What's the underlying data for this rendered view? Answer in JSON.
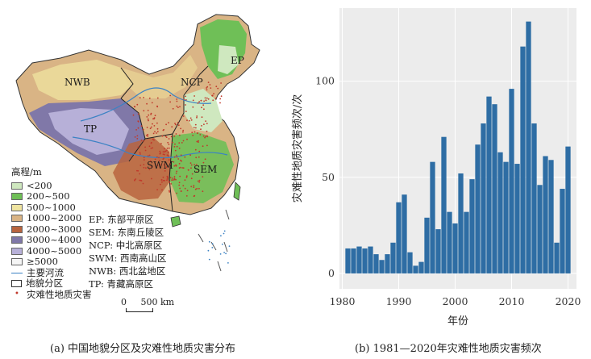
{
  "map_panel": {
    "legend_title": "高程/m",
    "elevation_legend": [
      {
        "label": "<200",
        "color": "#cfe8bf"
      },
      {
        "label": "200~500",
        "color": "#6fbf57"
      },
      {
        "label": "500~1000",
        "color": "#efe4a0"
      },
      {
        "label": "1000~2000",
        "color": "#d9b485"
      },
      {
        "label": "2000~3000",
        "color": "#b8643e"
      },
      {
        "label": "3000~4000",
        "color": "#8078a8"
      },
      {
        "label": "4000~5000",
        "color": "#b7b0d8"
      },
      {
        "label": "≥5000",
        "color": "#f5f5f5"
      }
    ],
    "river_label": "主要河流",
    "region_label": "地貌分区",
    "hazard_label": "灾难性地质灾害",
    "region_legend": [
      "EP: 东部平原区",
      "SEM: 东南丘陵区",
      "NCP: 中北高原区",
      "SWM: 西南高山区",
      "NWB: 西北盆地区",
      "TP: 青藏高原区"
    ],
    "map_labels": {
      "ep": "EP",
      "ncp": "NCP",
      "nwb": "NWB",
      "tp": "TP",
      "swm": "SWM",
      "sem": "SEM"
    },
    "scale_zero": "0",
    "scale_text": "500 km",
    "caption": "(a) 中国地貌分区及灾难性地质灾害分布"
  },
  "chart_panel": {
    "caption": "(b) 1981—2020年灾难性地质灾害频次"
  },
  "chart_data": {
    "type": "bar",
    "title": "",
    "xlabel": "年份",
    "ylabel": "灾难性地质灾害频次/次",
    "x": [
      1981,
      1982,
      1983,
      1984,
      1985,
      1986,
      1987,
      1988,
      1989,
      1990,
      1991,
      1992,
      1993,
      1994,
      1995,
      1996,
      1997,
      1998,
      1999,
      2000,
      2001,
      2002,
      2003,
      2004,
      2005,
      2006,
      2007,
      2008,
      2009,
      2010,
      2011,
      2012,
      2013,
      2014,
      2015,
      2016,
      2017,
      2018,
      2019,
      2020
    ],
    "values": [
      13,
      13,
      14,
      13,
      14,
      10,
      7,
      10,
      16,
      37,
      41,
      11,
      4,
      6,
      29,
      58,
      23,
      71,
      32,
      26,
      52,
      32,
      49,
      67,
      78,
      92,
      88,
      63,
      58,
      96,
      57,
      118,
      131,
      78,
      46,
      61,
      59,
      16,
      44,
      66
    ],
    "xticks": [
      1980,
      1990,
      2000,
      2010,
      2020
    ],
    "yticks": [
      0,
      50,
      100
    ],
    "xlim": [
      1979.5,
      2021.5
    ],
    "ylim": [
      -8,
      138
    ],
    "grid": true,
    "bar_color": "#2e6da4"
  }
}
